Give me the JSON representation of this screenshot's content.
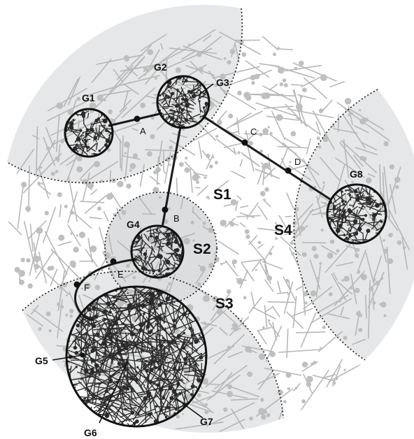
{
  "diagram": {
    "sectors": [
      {
        "id": "S1",
        "label": "S1"
      },
      {
        "id": "S2",
        "label": "S2"
      },
      {
        "id": "S3",
        "label": "S3"
      },
      {
        "id": "S4",
        "label": "S4"
      }
    ],
    "groups": [
      {
        "id": "G1",
        "label": "G1"
      },
      {
        "id": "G2",
        "label": "G2"
      },
      {
        "id": "G3",
        "label": "G3"
      },
      {
        "id": "G4",
        "label": "G4"
      },
      {
        "id": "G5",
        "label": "G5"
      },
      {
        "id": "G6",
        "label": "G6"
      },
      {
        "id": "G7",
        "label": "G7"
      },
      {
        "id": "G8",
        "label": "G8"
      }
    ],
    "path_points": [
      {
        "id": "A",
        "label": "A"
      },
      {
        "id": "B",
        "label": "B"
      },
      {
        "id": "C",
        "label": "C"
      },
      {
        "id": "D",
        "label": "D"
      },
      {
        "id": "E",
        "label": "E"
      },
      {
        "id": "F",
        "label": "F"
      }
    ],
    "links": [
      {
        "from": "G1",
        "to": "G2",
        "via": "A"
      },
      {
        "from": "G2",
        "to": "G8",
        "via": [
          "C",
          "D"
        ]
      },
      {
        "from": "G2",
        "to": "G4",
        "via": "B"
      },
      {
        "from": "G4",
        "to": "G7",
        "via": [
          "E",
          "F"
        ]
      }
    ],
    "colors": {
      "sector_fill": "#e6e7e8",
      "network_gray": "#b4b4b4",
      "cluster_ink": "#2a2a2a",
      "line": "#1a1a1a"
    }
  }
}
